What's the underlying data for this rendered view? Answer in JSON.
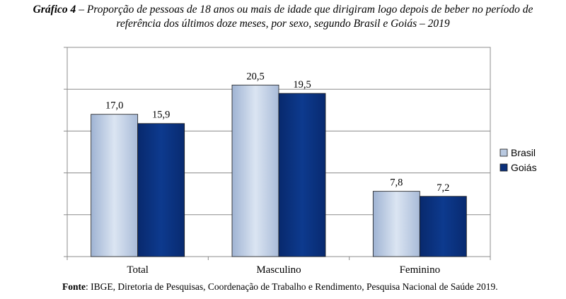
{
  "chart_data": {
    "type": "bar",
    "title_prefix": "Gráfico 4",
    "title_line1": " – Proporção de pessoas de 18 anos ou mais de idade que dirigiram logo depois de beber no período de",
    "title_line2": "referência dos últimos doze meses, por sexo, segundo Brasil e Goiás – 2019",
    "categories": [
      "Total",
      "Masculino",
      "Feminino"
    ],
    "series": [
      {
        "name": "Brasil",
        "values": [
          17.0,
          20.5,
          7.8
        ],
        "labels": [
          "17,0",
          "20,5",
          "7,8"
        ],
        "color": "#b9c9e0"
      },
      {
        "name": "Goiás",
        "values": [
          15.9,
          19.5,
          7.2
        ],
        "labels": [
          "15,9",
          "19,5",
          "7,2"
        ],
        "color": "#0a2f7a"
      }
    ],
    "ylim": [
      0,
      25
    ],
    "y_gridlines": [
      0,
      5,
      10,
      15,
      20,
      25
    ],
    "y_tick_labels_shown": false,
    "grid": true,
    "legend_position": "right",
    "xlabel": "",
    "ylabel": ""
  },
  "source": {
    "label": "Fonte",
    "text": ": IBGE, Diretoria de Pesquisas, Coordenação de Trabalho e Rendimento, Pesquisa Nacional de Saúde 2019."
  }
}
